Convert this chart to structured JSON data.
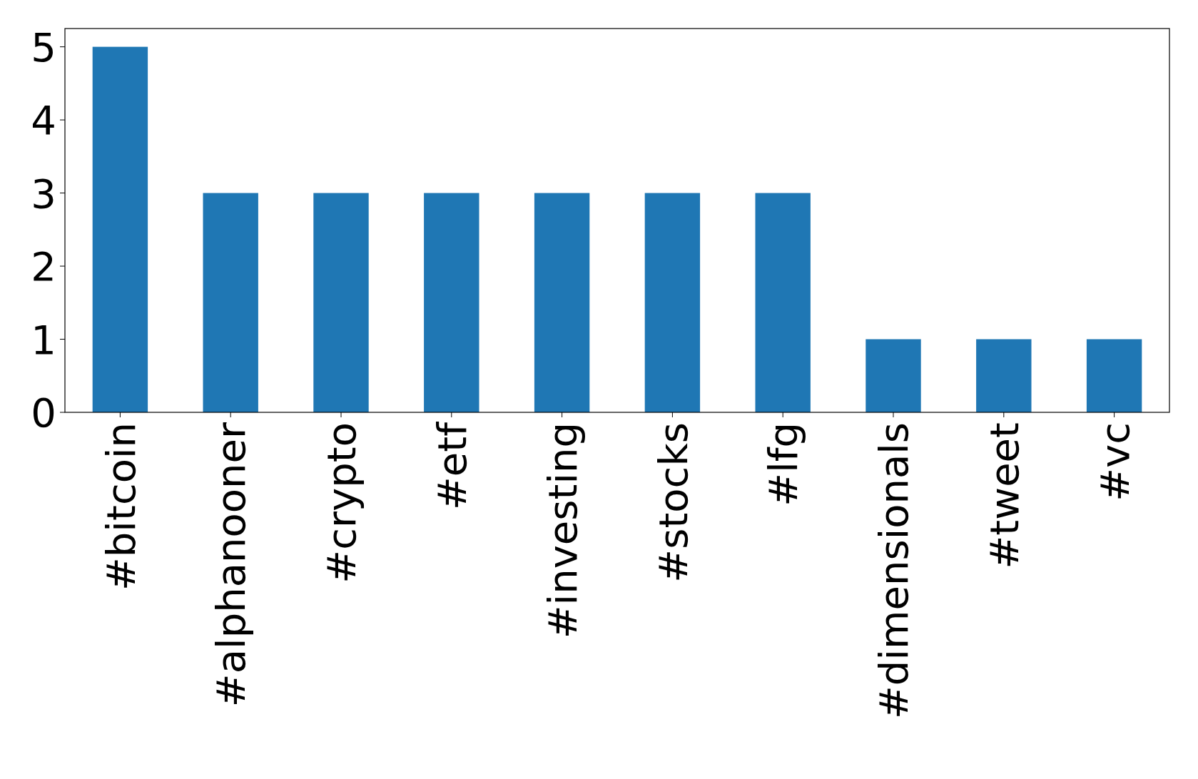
{
  "chart_data": {
    "type": "bar",
    "categories": [
      "#bitcoin",
      "#alphanooner",
      "#crypto",
      "#etf",
      "#investing",
      "#stocks",
      "#lfg",
      "#dimensionals",
      "#tweet",
      "#vc"
    ],
    "values": [
      5,
      3,
      3,
      3,
      3,
      3,
      3,
      1,
      1,
      1
    ],
    "color": "#1f77b4",
    "ylim": [
      0,
      5.25
    ],
    "yticks": [
      0,
      1,
      2,
      3,
      4,
      5
    ],
    "grid": false
  }
}
